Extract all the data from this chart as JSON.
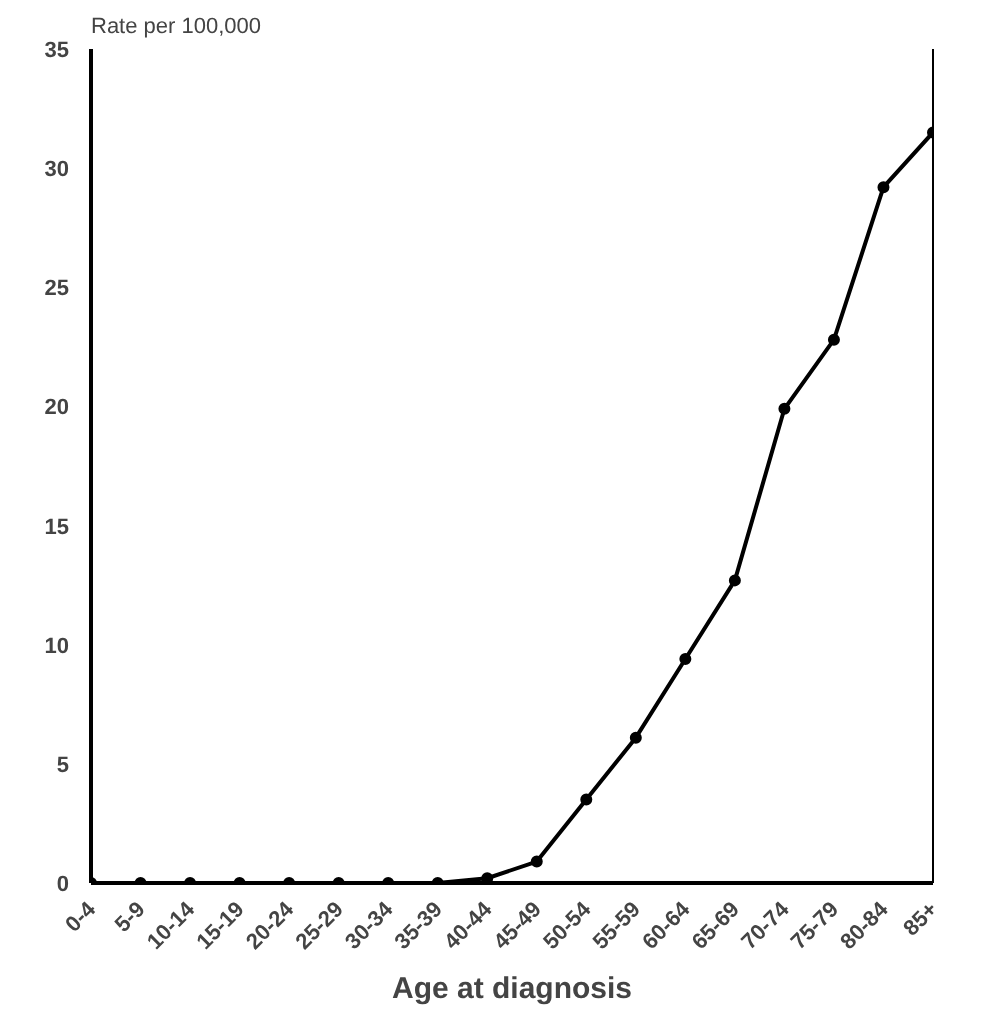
{
  "chart_data": {
    "type": "line",
    "ylabel": "Rate per 100,000",
    "xlabel": "Age at diagnosis",
    "categories": [
      "0-4",
      "5-9",
      "10-14",
      "15-19",
      "20-24",
      "25-29",
      "30-34",
      "35-39",
      "40-44",
      "45-49",
      "50-54",
      "55-59",
      "60-64",
      "65-69",
      "70-74",
      "75-79",
      "80-84",
      "85+"
    ],
    "series": [
      {
        "color": "#000000",
        "values": [
          0,
          0,
          0,
          0,
          0,
          0,
          0,
          0,
          0.2,
          0.9,
          3.5,
          6.1,
          9.4,
          12.7,
          19.9,
          22.8,
          29.2,
          31.5
        ]
      }
    ],
    "ylim": [
      0,
      35
    ],
    "yticks": [
      0,
      5,
      10,
      15,
      20,
      25,
      30,
      35
    ],
    "grid": false,
    "marker": "circle",
    "line_style": "solid"
  }
}
